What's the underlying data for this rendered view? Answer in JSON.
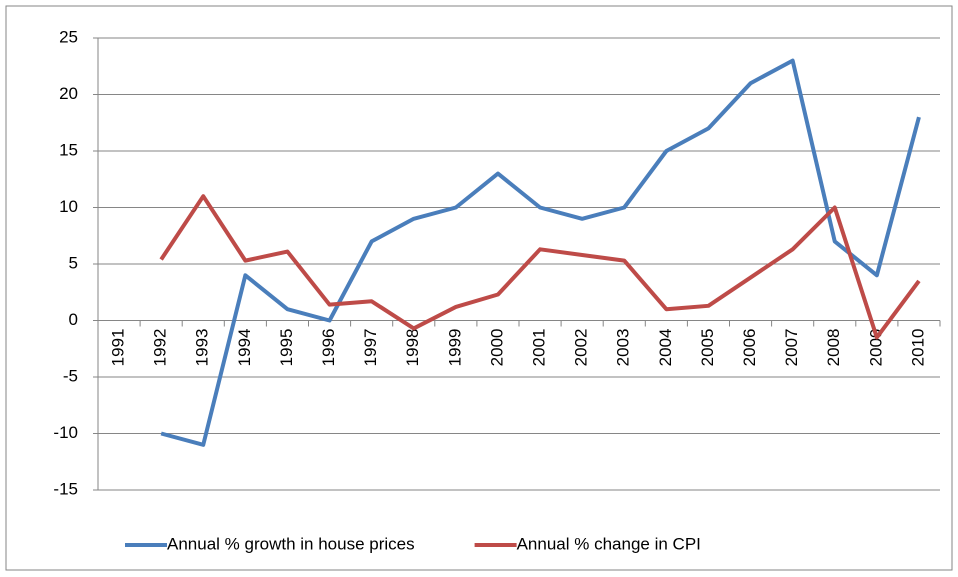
{
  "chart_data": {
    "type": "line",
    "categories": [
      "1991",
      "1992",
      "1993",
      "1994",
      "1995",
      "1996",
      "1997",
      "1998",
      "1999",
      "2000",
      "2001",
      "2002",
      "2003",
      "2004",
      "2005",
      "2006",
      "2007",
      "2008",
      "2009",
      "2010"
    ],
    "series": [
      {
        "name": "Annual % growth in house prices",
        "color": "#4a7ebb",
        "values": [
          null,
          -10,
          -11,
          4,
          1,
          0,
          7,
          9,
          10,
          13,
          10,
          9,
          10,
          15,
          17,
          21,
          23,
          7,
          4,
          18
        ]
      },
      {
        "name": "Annual % change in CPI",
        "color": "#be4b48",
        "values": [
          null,
          5.4,
          11,
          5.3,
          6.1,
          1.4,
          1.7,
          -0.7,
          1.2,
          2.3,
          6.3,
          5.8,
          5.3,
          1.0,
          1.3,
          3.8,
          6.3,
          10,
          -1.5,
          3.5
        ]
      }
    ],
    "ylim": [
      -15,
      25
    ],
    "yticks": [
      -15,
      -10,
      -5,
      0,
      5,
      10,
      15,
      20,
      25
    ],
    "grid": true,
    "legend": "bottom"
  }
}
